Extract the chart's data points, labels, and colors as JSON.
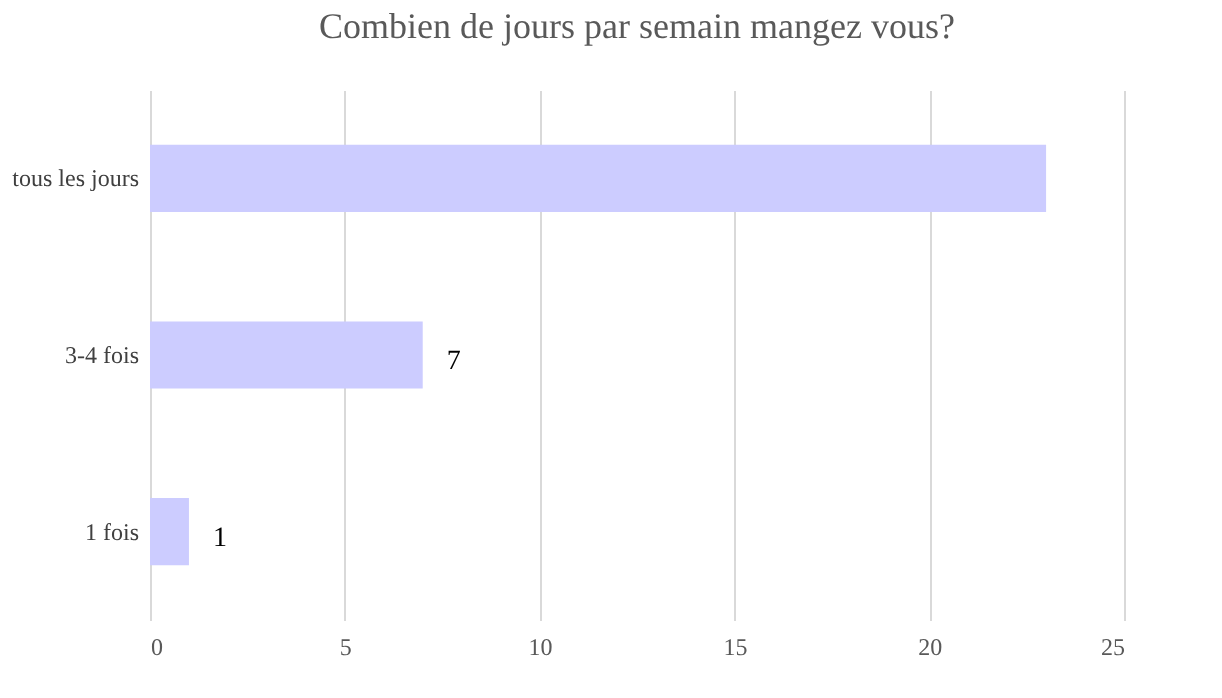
{
  "chart_data": {
    "type": "bar",
    "orientation": "horizontal",
    "title": "Combien de jours par semain mangez vous?",
    "categories": [
      "tous les jours",
      "3-4 fois",
      "1 fois"
    ],
    "values": [
      23,
      7,
      1
    ],
    "value_labels": [
      null,
      "7",
      "1"
    ],
    "color": "#ccccff",
    "xlim": [
      0,
      25
    ],
    "xticks": [
      0,
      5,
      10,
      15,
      20,
      25
    ],
    "grid": "x"
  }
}
